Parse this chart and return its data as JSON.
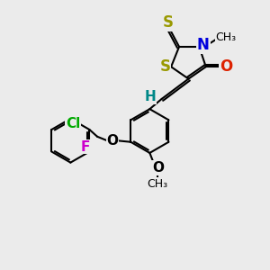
{
  "background_color": "#ebebeb",
  "figsize": [
    3.0,
    3.0
  ],
  "dpi": 100,
  "bond_color": "#000000",
  "lw": 1.5,
  "S_color": "#999900",
  "N_color": "#0000dd",
  "O_color": "#dd2200",
  "F_color": "#cc00cc",
  "Cl_color": "#00aa00",
  "H_color": "#008888",
  "xlim": [
    0,
    10
  ],
  "ylim": [
    0,
    10
  ]
}
